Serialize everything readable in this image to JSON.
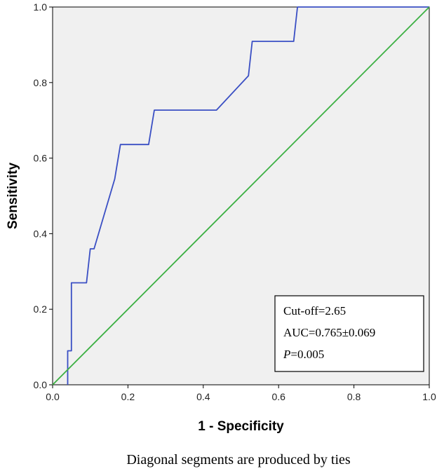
{
  "chart_data": {
    "type": "line",
    "xlabel": "1 - Specificity",
    "ylabel": "Sensitivity",
    "xlim": [
      0.0,
      1.0
    ],
    "ylim": [
      0.0,
      1.0
    ],
    "x_ticks": [
      "0.0",
      "0.2",
      "0.4",
      "0.6",
      "0.8",
      "1.0"
    ],
    "y_ticks": [
      "0.0",
      "0.2",
      "0.4",
      "0.6",
      "0.8",
      "1.0"
    ],
    "grid": false,
    "series": [
      {
        "color": "#3a4fc4",
        "points": [
          [
            0.04,
            0.0
          ],
          [
            0.04,
            0.09
          ],
          [
            0.05,
            0.09
          ],
          [
            0.05,
            0.27
          ],
          [
            0.09,
            0.27
          ],
          [
            0.1,
            0.36
          ],
          [
            0.11,
            0.36
          ],
          [
            0.165,
            0.545
          ],
          [
            0.18,
            0.636
          ],
          [
            0.255,
            0.636
          ],
          [
            0.27,
            0.727
          ],
          [
            0.435,
            0.727
          ],
          [
            0.52,
            0.818
          ],
          [
            0.53,
            0.909
          ],
          [
            0.64,
            0.909
          ],
          [
            0.65,
            1.0
          ],
          [
            1.0,
            1.0
          ]
        ]
      },
      {
        "color": "#3cb043",
        "points": [
          [
            0.0,
            0.0
          ],
          [
            1.0,
            1.0
          ]
        ]
      }
    ],
    "annotations": {
      "cutoff": "Cut-off=2.65",
      "auc": "AUC=0.765±0.069",
      "p_symbol": "P",
      "p_value": "=0.005"
    },
    "footnote": "Diagonal segments are produced by ties"
  }
}
